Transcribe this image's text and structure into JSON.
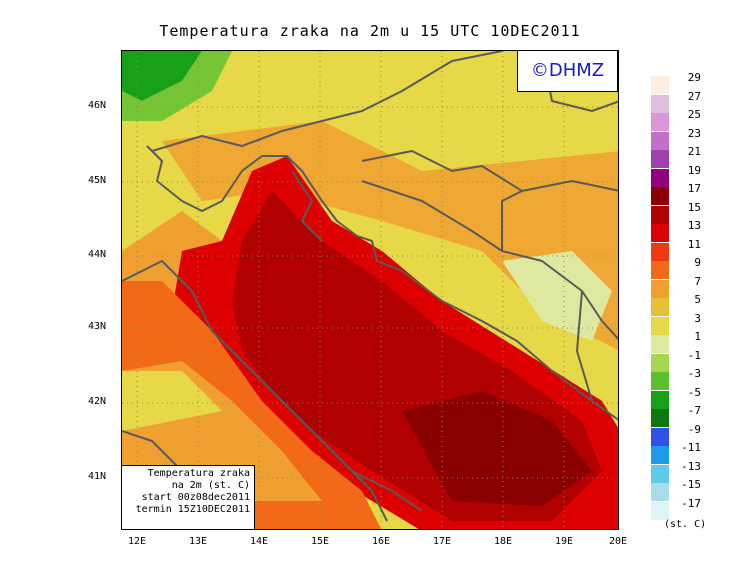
{
  "title": "Temperatura zraka na 2m u 15 UTC 10DEC2011",
  "logo": "©DHMZ",
  "info": {
    "line1": "Temperatura zraka",
    "line2": "na 2m (st. C)",
    "line3": "start 00z08dec2011",
    "line4": "termin 15Z10DEC2011"
  },
  "lat_labels": [
    "46N",
    "45N",
    "44N",
    "43N",
    "42N",
    "41N"
  ],
  "lon_labels": [
    "12E",
    "13E",
    "14E",
    "15E",
    "16E",
    "17E",
    "18E",
    "19E",
    "20E"
  ],
  "legend": {
    "labels": [
      "29",
      "27",
      "25",
      "23",
      "21",
      "19",
      "17",
      "15",
      "13",
      "11",
      "9",
      "7",
      "5",
      "3",
      "1",
      "-1",
      "-3",
      "-5",
      "-7",
      "-9",
      "-11",
      "-13",
      "-15",
      "-17"
    ],
    "colors": [
      "#fdeee0",
      "#dcc0dc",
      "#d898d8",
      "#c070c8",
      "#a040b0",
      "#900080",
      "#8a0000",
      "#b00000",
      "#dd0000",
      "#ee3a10",
      "#f26a18",
      "#f0a030",
      "#e8c038",
      "#e6d846",
      "#dfe8a0",
      "#a6d850",
      "#5ac030",
      "#18a018",
      "#0e780e",
      "#3050e8",
      "#1a9ae8",
      "#60c8e8",
      "#a8dce8",
      "#e0f6f6"
    ],
    "units": "(st. C)"
  },
  "colors": {
    "logo_text": "#1a1acc",
    "coastline": "#5a5a5a",
    "grid": "#8a8a50"
  }
}
